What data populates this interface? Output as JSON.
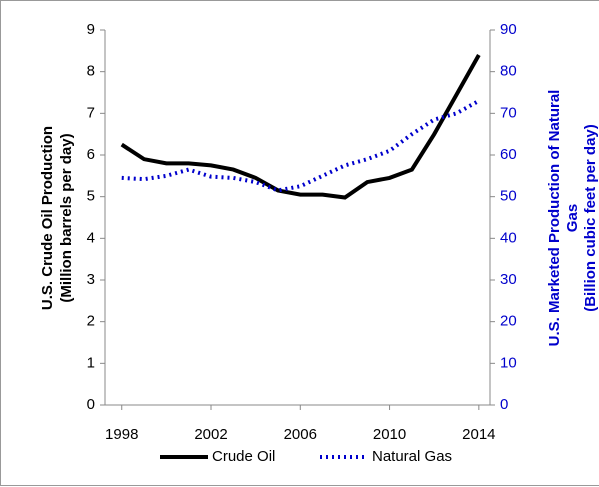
{
  "chart_data": {
    "type": "line",
    "x": [
      1998,
      1999,
      2000,
      2001,
      2002,
      2003,
      2004,
      2005,
      2006,
      2007,
      2008,
      2009,
      2010,
      2011,
      2012,
      2013,
      2014
    ],
    "series": [
      {
        "name": "Crude Oil",
        "color": "#000000",
        "style": "solid",
        "axis": "y",
        "values": [
          6.25,
          5.9,
          5.8,
          5.8,
          5.75,
          5.65,
          5.45,
          5.15,
          5.05,
          5.05,
          4.98,
          5.35,
          5.45,
          5.65,
          6.5,
          7.45,
          8.4
        ]
      },
      {
        "name": "Natural Gas",
        "color": "#0000cc",
        "style": "dotted",
        "axis": "y2",
        "values": [
          54.5,
          54.2,
          55,
          56.5,
          54.8,
          54.5,
          53.5,
          51.5,
          52.5,
          55,
          57.5,
          59,
          61,
          65,
          68.5,
          70,
          73
        ]
      }
    ],
    "xlim": [
      1997.25,
      2014.5
    ],
    "xticks": [
      1998,
      2002,
      2006,
      2010,
      2014
    ],
    "ylim": [
      0,
      9
    ],
    "yticks": [
      0,
      1,
      2,
      3,
      4,
      5,
      6,
      7,
      8,
      9
    ],
    "y2lim": [
      0,
      90
    ],
    "y2ticks": [
      0,
      10,
      20,
      30,
      40,
      50,
      60,
      70,
      80,
      90
    ],
    "y_label": [
      "U.S. Crude Oil Production",
      "(Million barrels per day)"
    ],
    "y2_label": [
      "U.S. Marketed Production  of Natural",
      "Gas",
      "(Billion cubic feet per day)"
    ],
    "y2_color": "#0000cc",
    "legend": "bottom"
  }
}
